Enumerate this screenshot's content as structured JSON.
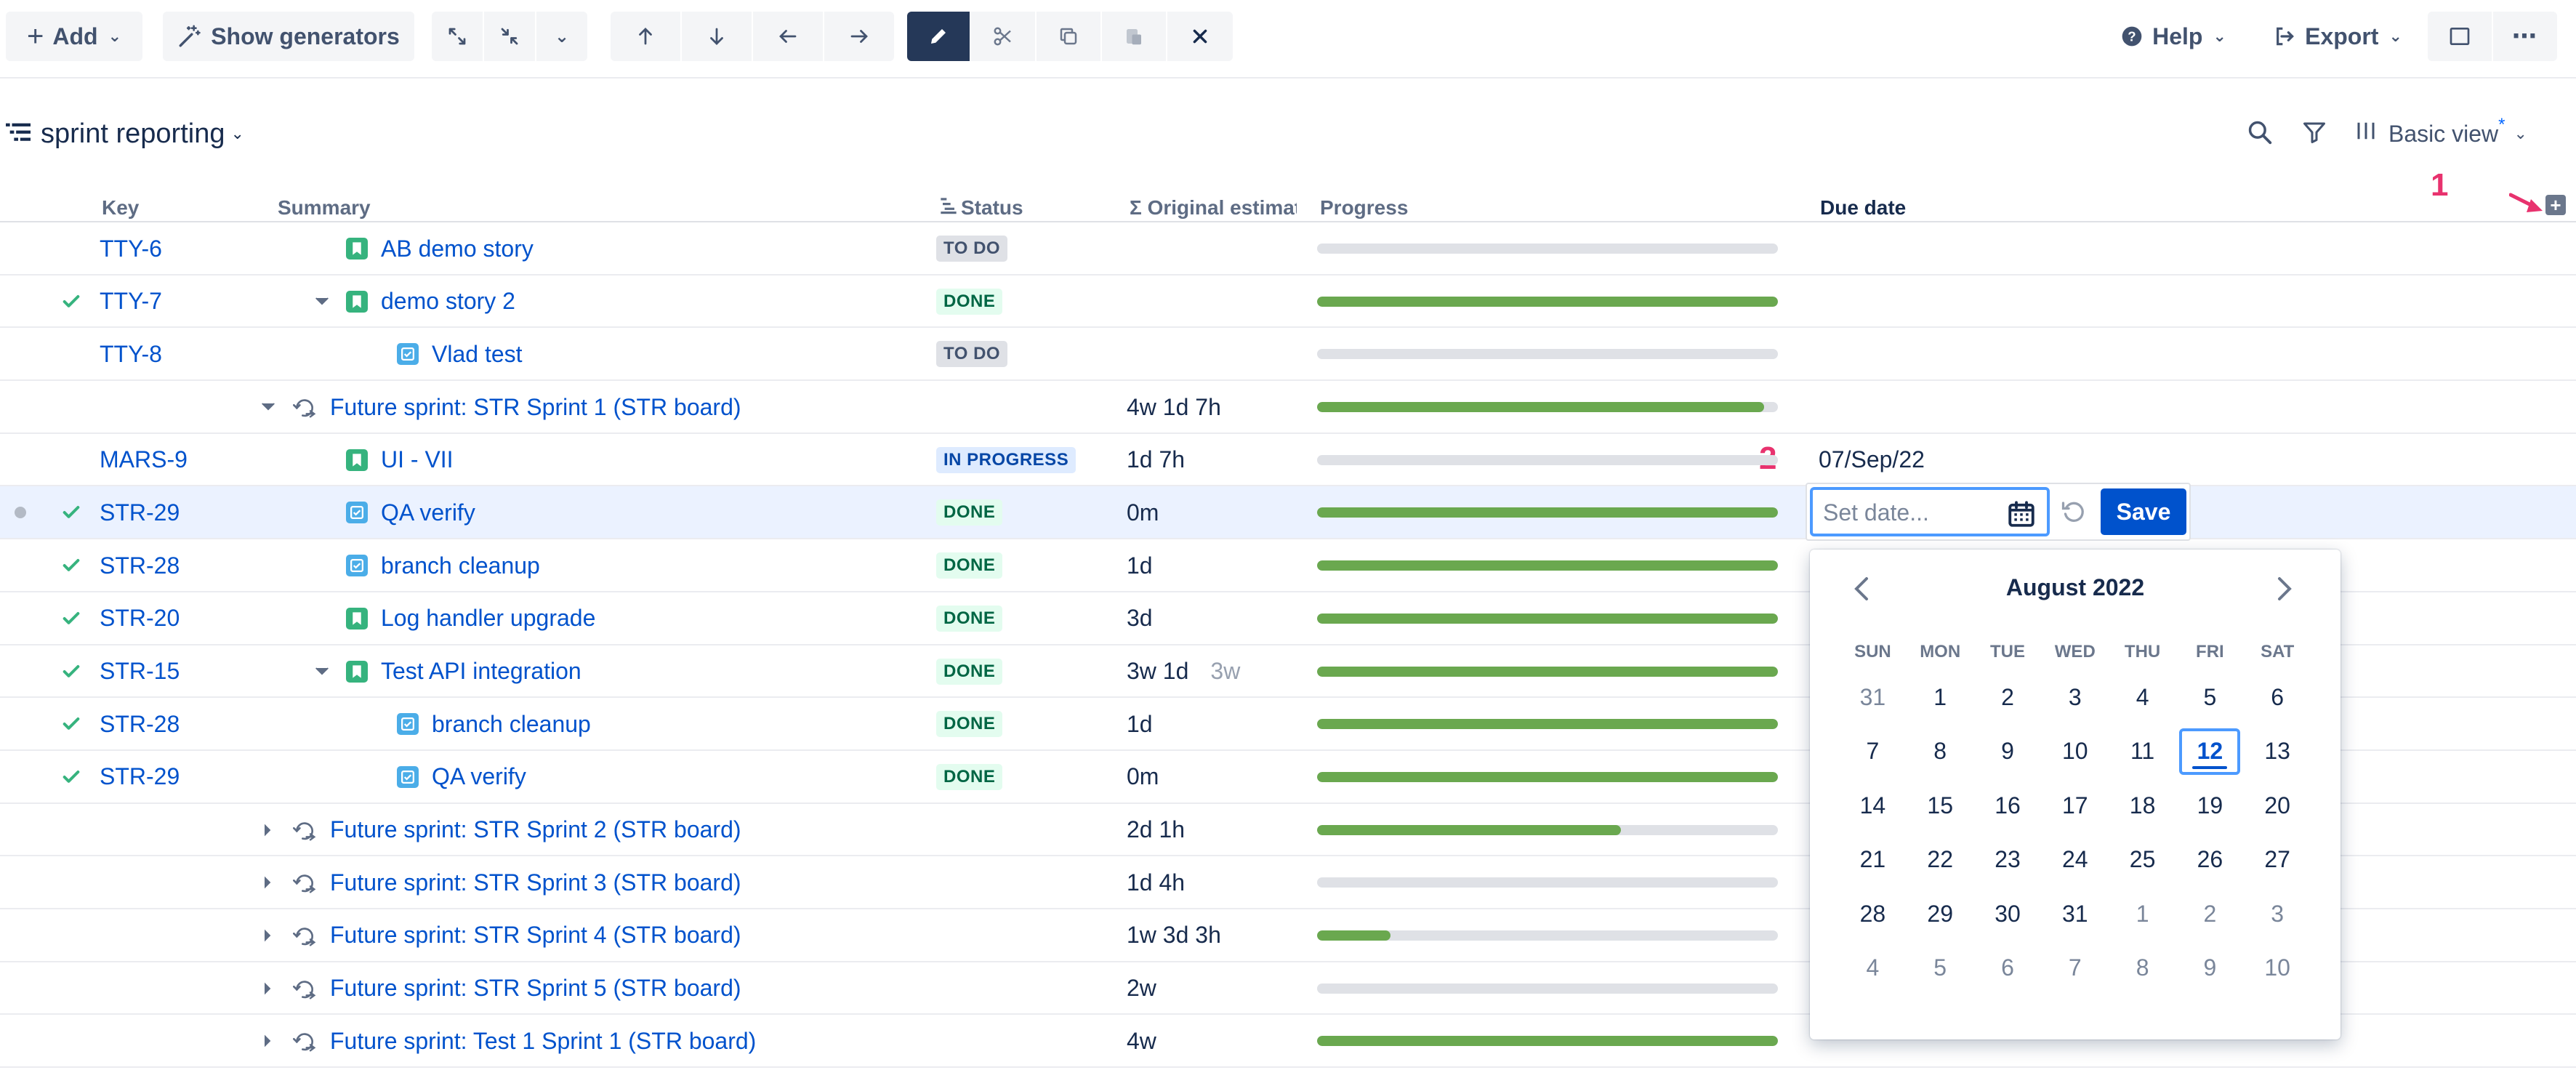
{
  "toolbar": {
    "add_label": "Add",
    "generators_label": "Show generators",
    "help_label": "Help",
    "export_label": "Export"
  },
  "structure": {
    "title": "sprint reporting",
    "view_label": "Basic view",
    "view_modified_marker": "*"
  },
  "columns": {
    "key": "Key",
    "summary": "Summary",
    "status": "Status",
    "estimate": "Σ Original estimate",
    "progress": "Progress",
    "due_date": "Due date"
  },
  "annotations": {
    "one": "1",
    "two": "2"
  },
  "rows": [
    {
      "check": false,
      "key": "TTY-6",
      "indent": 0,
      "chevron": "",
      "type": "story",
      "summary": "AB demo story",
      "status": "TO DO",
      "status_kind": "todo",
      "estimate": "",
      "estimate_secondary": "",
      "progress": 0,
      "due": ""
    },
    {
      "check": true,
      "key": "TTY-7",
      "indent": 0,
      "chevron": "down",
      "type": "story",
      "summary": "demo story 2",
      "status": "DONE",
      "status_kind": "done",
      "estimate": "",
      "estimate_secondary": "",
      "progress": 1,
      "due": ""
    },
    {
      "check": false,
      "key": "TTY-8",
      "indent": 1,
      "chevron": "",
      "type": "task",
      "summary": "Vlad test",
      "status": "TO DO",
      "status_kind": "todo",
      "estimate": "",
      "estimate_secondary": "",
      "progress": 0,
      "due": ""
    },
    {
      "check": false,
      "key": "",
      "indent": -1,
      "chevron": "down",
      "type": "sprint",
      "summary": "Future sprint: STR Sprint 1 (STR board)",
      "status": "",
      "status_kind": "",
      "estimate": "4w 1d 7h",
      "estimate_secondary": "",
      "progress": 0.97,
      "due": ""
    },
    {
      "check": false,
      "key": "MARS-9",
      "indent": 0,
      "chevron": "",
      "type": "story",
      "summary": "UI - VII",
      "status": "IN PROGRESS",
      "status_kind": "prog",
      "estimate": "1d 7h",
      "estimate_secondary": "",
      "progress": 0,
      "due": "07/Sep/22"
    },
    {
      "check": true,
      "key": "STR-29",
      "indent": 0,
      "chevron": "",
      "type": "task",
      "summary": "QA verify",
      "status": "DONE",
      "status_kind": "done",
      "estimate": "0m",
      "estimate_secondary": "",
      "progress": 1,
      "due": "",
      "selected": true
    },
    {
      "check": true,
      "key": "STR-28",
      "indent": 0,
      "chevron": "",
      "type": "task",
      "summary": "branch cleanup",
      "status": "DONE",
      "status_kind": "done",
      "estimate": "1d",
      "estimate_secondary": "",
      "progress": 1,
      "due": ""
    },
    {
      "check": true,
      "key": "STR-20",
      "indent": 0,
      "chevron": "",
      "type": "story",
      "summary": "Log handler upgrade",
      "status": "DONE",
      "status_kind": "done",
      "estimate": "3d",
      "estimate_secondary": "",
      "progress": 1,
      "due": ""
    },
    {
      "check": true,
      "key": "STR-15",
      "indent": 0,
      "chevron": "down",
      "type": "story",
      "summary": "Test API integration",
      "status": "DONE",
      "status_kind": "done",
      "estimate": "3w 1d",
      "estimate_secondary": "3w",
      "progress": 1,
      "due": ""
    },
    {
      "check": true,
      "key": "STR-28",
      "indent": 1,
      "chevron": "",
      "type": "task",
      "summary": "branch cleanup",
      "status": "DONE",
      "status_kind": "done",
      "estimate": "1d",
      "estimate_secondary": "",
      "progress": 1,
      "due": ""
    },
    {
      "check": true,
      "key": "STR-29",
      "indent": 1,
      "chevron": "",
      "type": "task",
      "summary": "QA verify",
      "status": "DONE",
      "status_kind": "done",
      "estimate": "0m",
      "estimate_secondary": "",
      "progress": 1,
      "due": ""
    },
    {
      "check": false,
      "key": "",
      "indent": -1,
      "chevron": "right",
      "type": "sprint",
      "summary": "Future sprint: STR Sprint 2 (STR board)",
      "status": "",
      "status_kind": "",
      "estimate": "2d 1h",
      "estimate_secondary": "",
      "progress": 0.66,
      "due": ""
    },
    {
      "check": false,
      "key": "",
      "indent": -1,
      "chevron": "right",
      "type": "sprint",
      "summary": "Future sprint: STR Sprint 3 (STR board)",
      "status": "",
      "status_kind": "",
      "estimate": "1d 4h",
      "estimate_secondary": "",
      "progress": 0,
      "due": ""
    },
    {
      "check": false,
      "key": "",
      "indent": -1,
      "chevron": "right",
      "type": "sprint",
      "summary": "Future sprint: STR Sprint 4 (STR board)",
      "status": "",
      "status_kind": "",
      "estimate": "1w 3d 3h",
      "estimate_secondary": "",
      "progress": 0.16,
      "due": ""
    },
    {
      "check": false,
      "key": "",
      "indent": -1,
      "chevron": "right",
      "type": "sprint",
      "summary": "Future sprint: STR Sprint 5 (STR board)",
      "status": "",
      "status_kind": "",
      "estimate": "2w",
      "estimate_secondary": "",
      "progress": 0,
      "due": ""
    },
    {
      "check": false,
      "key": "",
      "indent": -1,
      "chevron": "right",
      "type": "sprint",
      "summary": "Future sprint: Test 1 Sprint 1 (STR board)",
      "status": "",
      "status_kind": "",
      "estimate": "4w",
      "estimate_secondary": "",
      "progress": 1,
      "due": ""
    }
  ],
  "date_editor": {
    "placeholder": "Set date...",
    "value": "",
    "save_label": "Save"
  },
  "calendar": {
    "title": "August 2022",
    "weekdays": [
      "SUN",
      "MON",
      "TUE",
      "WED",
      "THU",
      "FRI",
      "SAT"
    ],
    "weeks": [
      [
        {
          "d": "31",
          "out": true
        },
        {
          "d": "1"
        },
        {
          "d": "2"
        },
        {
          "d": "3"
        },
        {
          "d": "4"
        },
        {
          "d": "5"
        },
        {
          "d": "6"
        }
      ],
      [
        {
          "d": "7"
        },
        {
          "d": "8"
        },
        {
          "d": "9"
        },
        {
          "d": "10"
        },
        {
          "d": "11"
        },
        {
          "d": "12",
          "selected": true
        },
        {
          "d": "13"
        }
      ],
      [
        {
          "d": "14"
        },
        {
          "d": "15"
        },
        {
          "d": "16"
        },
        {
          "d": "17"
        },
        {
          "d": "18"
        },
        {
          "d": "19"
        },
        {
          "d": "20"
        }
      ],
      [
        {
          "d": "21"
        },
        {
          "d": "22"
        },
        {
          "d": "23"
        },
        {
          "d": "24"
        },
        {
          "d": "25"
        },
        {
          "d": "26"
        },
        {
          "d": "27"
        }
      ],
      [
        {
          "d": "28"
        },
        {
          "d": "29"
        },
        {
          "d": "30"
        },
        {
          "d": "31"
        },
        {
          "d": "1",
          "out": true
        },
        {
          "d": "2",
          "out": true
        },
        {
          "d": "3",
          "out": true
        }
      ],
      [
        {
          "d": "4",
          "out": true
        },
        {
          "d": "5",
          "out": true
        },
        {
          "d": "6",
          "out": true
        },
        {
          "d": "7",
          "out": true
        },
        {
          "d": "8",
          "out": true
        },
        {
          "d": "9",
          "out": true
        },
        {
          "d": "10",
          "out": true
        }
      ]
    ]
  },
  "colors": {
    "accent": "#0052cc",
    "done_progress": "#6aa84f",
    "check": "#36b37e",
    "annotation": "#e8326e"
  }
}
